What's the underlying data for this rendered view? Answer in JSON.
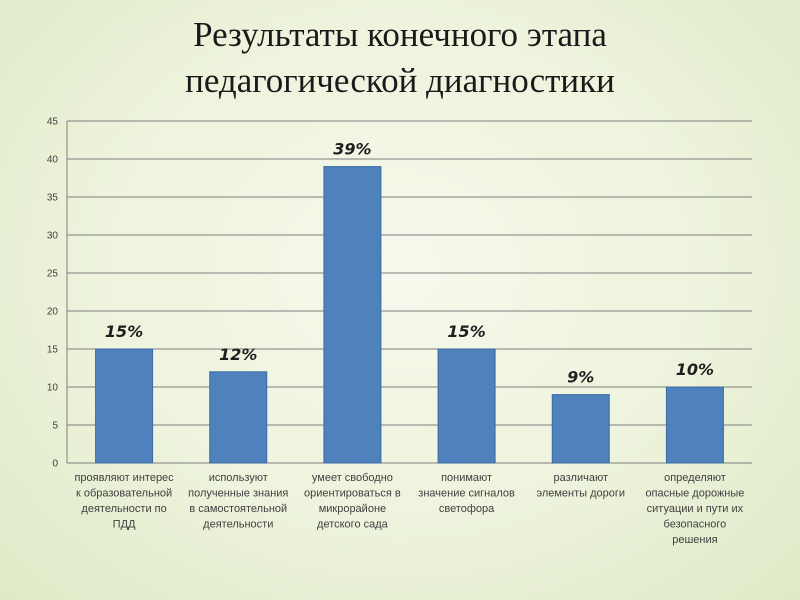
{
  "title": {
    "line1": "Результаты конечного этапа",
    "line2": "педагогической диагностики"
  },
  "colors": {
    "bar": "#4f81bd",
    "bar_edge": "#3b6aa3",
    "gridline": "#7f7f7f",
    "axis_text": "#404040",
    "data_label": "#1f1f1f"
  },
  "chart_data": {
    "type": "bar",
    "title": "",
    "xlabel": "",
    "ylabel": "",
    "ylim": [
      0,
      45
    ],
    "y_ticks": [
      0,
      5,
      10,
      15,
      20,
      25,
      30,
      35,
      40,
      45
    ],
    "grid": true,
    "legend": "none",
    "categories": [
      "проявляют интерес к образовательной деятельности по ПДД",
      "используют полученные знания в самостоятельной деятельности",
      "умеет свободно ориентироваться в микрорайоне детского сада",
      "понимают значение сигналов светофора",
      "различают элементы дороги",
      "определяют опасные дорожные ситуации и пути их безопасного решения"
    ],
    "category_lines": [
      [
        "проявляют интерес",
        "к образовательной",
        "деятельности по",
        "ПДД"
      ],
      [
        "используют",
        "полученные знания",
        "в самостоятельной",
        "деятельности"
      ],
      [
        "умеет свободно",
        "ориентироваться в",
        "микрорайоне",
        "детского сада"
      ],
      [
        "понимают",
        "значение сигналов",
        "светофора"
      ],
      [
        "различают",
        "элементы дороги"
      ],
      [
        "определяют",
        "опасные дорожные",
        "ситуации и пути их",
        "безопасного",
        "решения"
      ]
    ],
    "values": [
      15,
      12,
      39,
      15,
      9,
      10
    ],
    "data_labels": [
      "15%",
      "12%",
      "39%",
      "15%",
      "9%",
      "10%"
    ]
  }
}
